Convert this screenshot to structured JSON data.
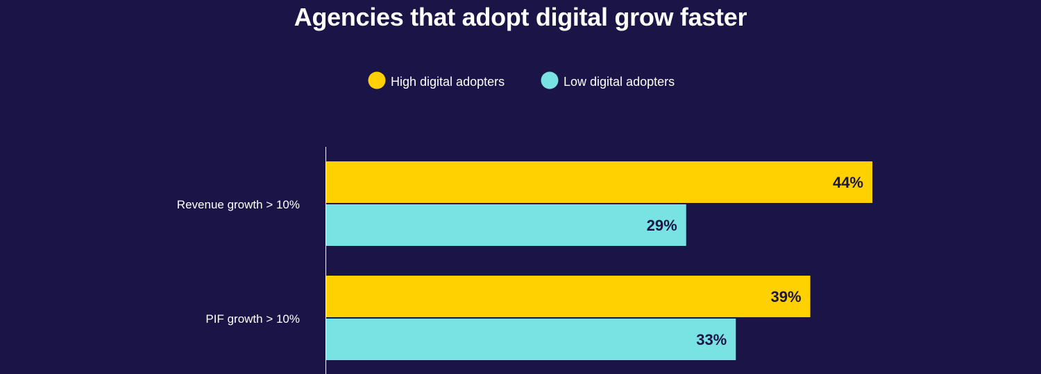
{
  "chart_data": {
    "type": "bar",
    "orientation": "horizontal",
    "title": "Agencies that adopt digital grow faster",
    "categories": [
      "Revenue growth > 10%",
      "PIF growth > 10%"
    ],
    "series": [
      {
        "name": "High digital adopters",
        "color": "#ffd100",
        "values": [
          44,
          39
        ],
        "labels": [
          "44%",
          "39%"
        ]
      },
      {
        "name": "Low digital adopters",
        "color": "#79e2e2",
        "values": [
          29,
          33
        ],
        "labels": [
          "29%",
          "33%"
        ]
      }
    ],
    "xlim": [
      0,
      55
    ],
    "legend": "top-center",
    "grid": false,
    "background": "#1b1446",
    "value_label_color": "#1b1446",
    "axis_color": "#ffffff"
  }
}
